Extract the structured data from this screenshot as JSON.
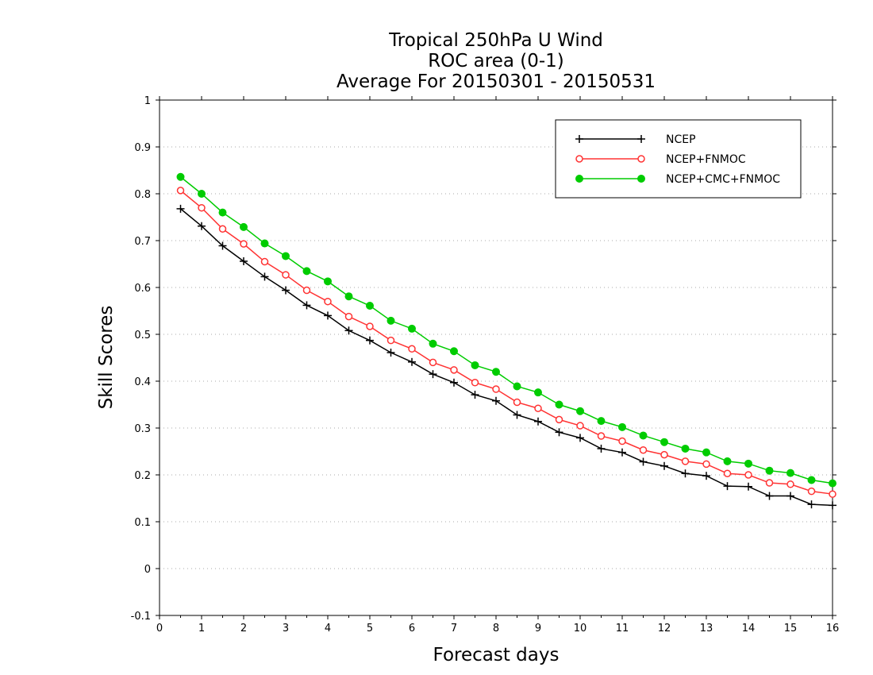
{
  "chart_data": {
    "type": "line",
    "title_lines": [
      "Tropical 250hPa U Wind",
      "ROC area (0-1)",
      "Average For 20150301 - 20150531"
    ],
    "xlabel": "Forecast days",
    "ylabel": "Skill Scores",
    "xlim": [
      0,
      16
    ],
    "ylim": [
      -0.1,
      1
    ],
    "xticks": [
      0,
      1,
      2,
      3,
      4,
      5,
      6,
      7,
      8,
      9,
      10,
      11,
      12,
      13,
      14,
      15,
      16
    ],
    "xtick_labels": [
      "0",
      "1",
      "2",
      "3",
      "4",
      "5",
      "6",
      "7",
      "8",
      "9",
      "10",
      "11",
      "12",
      "13",
      "14",
      "15",
      "16"
    ],
    "yticks": [
      -0.1,
      0,
      0.1,
      0.2,
      0.3,
      0.4,
      0.5,
      0.6,
      0.7,
      0.8,
      0.9,
      1
    ],
    "ytick_labels": [
      "-0.1",
      "0",
      "0.1",
      "0.2",
      "0.3",
      "0.4",
      "0.5",
      "0.6",
      "0.7",
      "0.8",
      "0.9",
      "1"
    ],
    "grid": "horizontal dotted",
    "legend_position": "top-right",
    "x": [
      0.5,
      1,
      1.5,
      2,
      2.5,
      3,
      3.5,
      4,
      4.5,
      5,
      5.5,
      6,
      6.5,
      7,
      7.5,
      8,
      8.5,
      9,
      9.5,
      10,
      10.5,
      11,
      11.5,
      12,
      12.5,
      13,
      13.5,
      14,
      14.5,
      15,
      15.5,
      16
    ],
    "series": [
      {
        "name": "NCEP",
        "color": "#000000",
        "marker": "plus",
        "values": [
          0.768,
          0.731,
          0.689,
          0.656,
          0.623,
          0.594,
          0.562,
          0.54,
          0.508,
          0.487,
          0.461,
          0.441,
          0.415,
          0.397,
          0.371,
          0.358,
          0.328,
          0.314,
          0.291,
          0.279,
          0.256,
          0.248,
          0.228,
          0.219,
          0.203,
          0.198,
          0.176,
          0.175,
          0.155,
          0.155,
          0.137,
          0.135
        ]
      },
      {
        "name": "NCEP+FNMOC",
        "color": "#ff3333",
        "marker": "open-circle",
        "values": [
          0.807,
          0.77,
          0.725,
          0.693,
          0.655,
          0.627,
          0.594,
          0.57,
          0.538,
          0.517,
          0.487,
          0.469,
          0.44,
          0.424,
          0.397,
          0.383,
          0.355,
          0.342,
          0.318,
          0.305,
          0.283,
          0.272,
          0.253,
          0.243,
          0.229,
          0.223,
          0.203,
          0.2,
          0.183,
          0.18,
          0.165,
          0.159
        ]
      },
      {
        "name": "NCEP+CMC+FNMOC",
        "color": "#00cc00",
        "marker": "filled-circle",
        "values": [
          0.836,
          0.8,
          0.76,
          0.729,
          0.694,
          0.667,
          0.635,
          0.613,
          0.581,
          0.561,
          0.529,
          0.512,
          0.48,
          0.464,
          0.434,
          0.42,
          0.389,
          0.376,
          0.35,
          0.336,
          0.315,
          0.302,
          0.284,
          0.27,
          0.256,
          0.248,
          0.229,
          0.224,
          0.209,
          0.204,
          0.189,
          0.182
        ]
      }
    ]
  }
}
